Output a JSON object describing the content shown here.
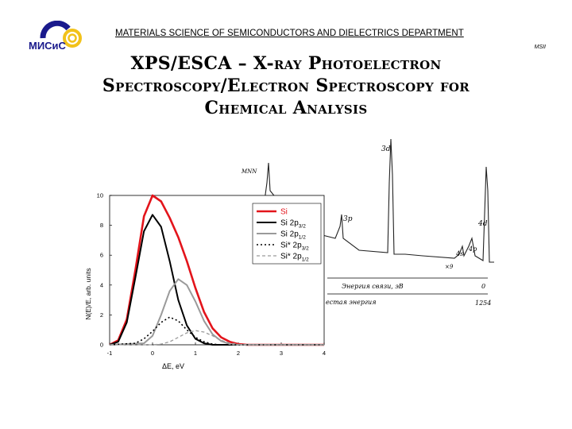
{
  "header": {
    "logo_text": "МИСиС",
    "department": "MATERIALS SCIENCE OF SEMICONDUCTORS AND DIELECTRICS DEPARTMENT",
    "org_short": "MSII"
  },
  "title": {
    "line1": "XPS/ESCA – X-ray Photoelectron",
    "line2": "Spectroscopy/Electron Spectroscopy for",
    "line3": "Chemical Analysis"
  },
  "colors": {
    "brand_blue": "#1a1a8c",
    "brand_yellow": "#f2c21a",
    "si_red": "#e3141b",
    "gray_curve": "#9a9a9a"
  },
  "xps_figure": {
    "labels": {
      "d3": "3d",
      "mnn": "MNN",
      "p3": "3p",
      "d4": "4d",
      "s4": "4s",
      "p4": "4p",
      "x9": "×9",
      "zero": "0",
      "val": "1254",
      "axis1": "Энергия связи, эВ",
      "axis2": "естая энергия"
    }
  },
  "chart_data": {
    "type": "line",
    "xlabel": "ΔE, eV",
    "ylabel": "N(E)/E, arb. units",
    "xlim": [
      -1,
      4
    ],
    "ylim": [
      0,
      10
    ],
    "x_ticks": [
      "-1",
      "0",
      "1",
      "2",
      "3",
      "4"
    ],
    "y_ticks": [
      "0",
      "2",
      "4",
      "6",
      "8",
      "10"
    ],
    "legend_position": "top-right",
    "series": [
      {
        "name": "Si",
        "style": "solid",
        "color": "#e3141b",
        "x": [
          -1,
          -0.8,
          -0.6,
          -0.4,
          -0.2,
          0,
          0.2,
          0.4,
          0.6,
          0.8,
          1.0,
          1.2,
          1.4,
          1.6,
          1.8,
          2.0,
          2.2,
          3,
          4
        ],
        "y": [
          0,
          0.3,
          1.7,
          5.0,
          8.6,
          10.0,
          9.6,
          8.5,
          7.2,
          5.6,
          3.8,
          2.2,
          1.1,
          0.5,
          0.2,
          0.05,
          0,
          0,
          0
        ]
      },
      {
        "name": "Si 2p3/2",
        "label_main": "Si 2p",
        "label_sub": "3/2",
        "style": "solid",
        "color": "#000000",
        "x": [
          -1,
          -0.8,
          -0.6,
          -0.4,
          -0.2,
          0,
          0.2,
          0.4,
          0.6,
          0.8,
          1.0,
          1.2,
          1.4,
          2,
          4
        ],
        "y": [
          0,
          0.2,
          1.5,
          4.5,
          7.6,
          8.7,
          7.9,
          5.6,
          3.0,
          1.3,
          0.4,
          0.1,
          0,
          0,
          0
        ]
      },
      {
        "name": "Si 2p1/2",
        "label_main": "Si 2p",
        "label_sub": "1/2",
        "style": "solid",
        "color": "#9a9a9a",
        "x": [
          -1,
          -0.2,
          0,
          0.2,
          0.4,
          0.6,
          0.8,
          1.0,
          1.2,
          1.4,
          1.6,
          1.8,
          2.0,
          4
        ],
        "y": [
          0,
          0.1,
          0.6,
          2.0,
          3.6,
          4.4,
          4.0,
          2.9,
          1.6,
          0.7,
          0.25,
          0.05,
          0,
          0
        ]
      },
      {
        "name": "Si* 2p3/2",
        "label_main": "Si* 2p",
        "label_sub": "3/2",
        "style": "dotted",
        "color": "#000000",
        "x": [
          -1,
          -0.4,
          -0.2,
          0,
          0.2,
          0.4,
          0.6,
          0.8,
          1.0,
          1.2,
          1.4,
          1.6,
          4
        ],
        "y": [
          0,
          0.1,
          0.4,
          0.9,
          1.5,
          1.85,
          1.6,
          1.0,
          0.5,
          0.2,
          0.05,
          0,
          0
        ]
      },
      {
        "name": "Si* 2p1/2",
        "label_main": "Si* 2p",
        "label_sub": "1/2",
        "style": "dashed",
        "color": "#9a9a9a",
        "x": [
          -1,
          0,
          0.2,
          0.4,
          0.6,
          0.8,
          1.0,
          1.2,
          1.4,
          1.6,
          1.8,
          2.0,
          2.2,
          4
        ],
        "y": [
          0,
          0,
          0.05,
          0.2,
          0.5,
          0.8,
          0.95,
          0.85,
          0.6,
          0.3,
          0.12,
          0.03,
          0,
          0
        ]
      }
    ]
  }
}
